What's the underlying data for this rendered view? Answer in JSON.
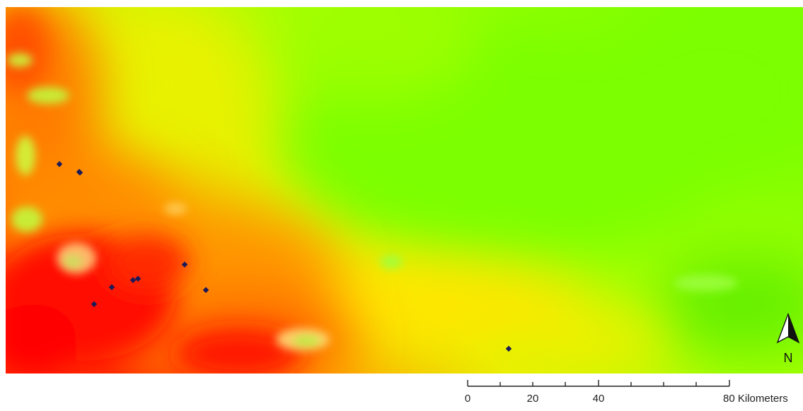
{
  "map": {
    "layer": "elevation",
    "color_ramp": [
      "#ff0000",
      "#ff6a00",
      "#ffa500",
      "#ffdd00",
      "#ccff00",
      "#7cff00"
    ]
  },
  "points": [
    {
      "id": "p1"
    },
    {
      "id": "p2"
    },
    {
      "id": "p3"
    },
    {
      "id": "p4"
    },
    {
      "id": "p5"
    },
    {
      "id": "p6"
    },
    {
      "id": "p7"
    },
    {
      "id": "p8"
    },
    {
      "id": "p9"
    },
    {
      "id": "p10"
    }
  ],
  "north_arrow": {
    "label": "N"
  },
  "scale_bar": {
    "labels": [
      "0",
      "20",
      "40",
      "80 Kilometers"
    ],
    "unit": "Kilometers"
  },
  "colors": {
    "point": "#1a1a5a",
    "outline": "#222222"
  }
}
